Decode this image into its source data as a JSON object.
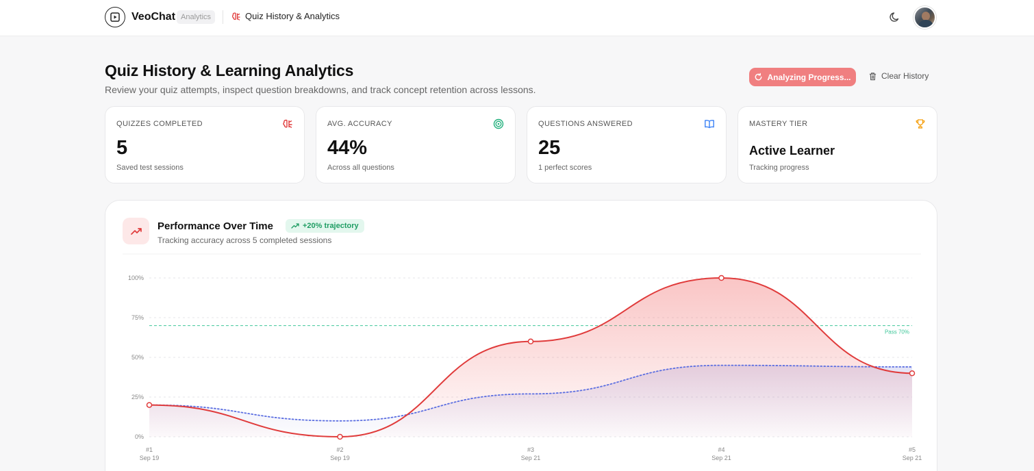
{
  "nav": {
    "brand": "VeoChat",
    "badge": "Analytics",
    "crumb": "Quiz History & Analytics"
  },
  "header": {
    "title": "Quiz History & Learning Analytics",
    "subtitle": "Review your quiz attempts, inspect question breakdowns, and track concept retention across lessons.",
    "analyze_label": "Analyzing Progress...",
    "clear_label": "Clear History"
  },
  "stats": [
    {
      "label": "QUIZZES COMPLETED",
      "value": "5",
      "sub": "Saved test sessions",
      "icon": "brain-icon",
      "color": "#e03b3b"
    },
    {
      "label": "AVG. ACCURACY",
      "value": "44%",
      "sub": "Across all questions",
      "icon": "target-icon",
      "color": "#22b07d"
    },
    {
      "label": "QUESTIONS ANSWERED",
      "value": "25",
      "sub": "1 perfect scores",
      "icon": "book-icon",
      "color": "#3b82f6"
    },
    {
      "label": "MASTERY TIER",
      "value": "Active Learner",
      "sub": "Tracking progress",
      "icon": "trophy-icon",
      "color": "#f59e0b"
    }
  ],
  "performance": {
    "title": "Performance Over Time",
    "badge": "+20% trajectory",
    "subtitle": "Tracking accuracy across 5 completed sessions"
  },
  "chart_data": {
    "type": "area",
    "x": [
      "#1",
      "#2",
      "#3",
      "#4",
      "#5"
    ],
    "x_dates": [
      "Sep 19",
      "Sep 19",
      "Sep 21",
      "Sep 21",
      "Sep 21"
    ],
    "series": [
      {
        "values": [
          20,
          0,
          60,
          100,
          40
        ],
        "color": "#e03b3b",
        "style": "solid"
      },
      {
        "values": [
          20,
          10,
          27,
          45,
          44
        ],
        "color": "#5b6ee1",
        "style": "dotted"
      }
    ],
    "reference_line": {
      "value": 70,
      "label": "Pass 70%",
      "color": "#3fc79a"
    },
    "yticks": [
      "0%",
      "25%",
      "50%",
      "75%",
      "100%"
    ],
    "ylim": [
      0,
      100
    ],
    "grid": true
  }
}
